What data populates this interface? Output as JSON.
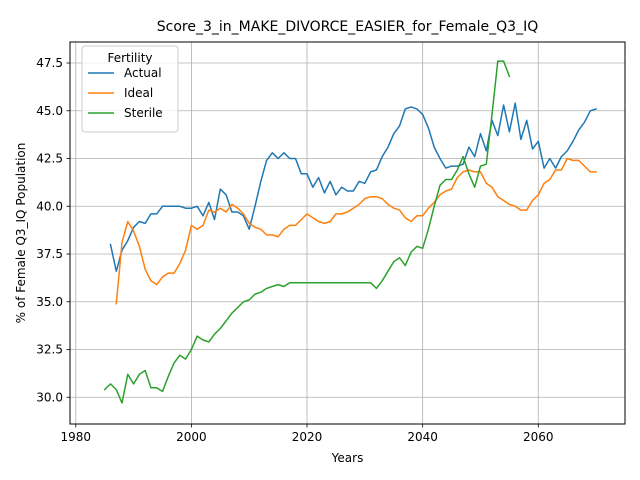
{
  "chart_data": {
    "type": "line",
    "title": "Score_3_in_MAKE_DIVORCE_EASIER_for_Female_Q3_IQ",
    "xlabel": "Years",
    "ylabel": "% of Female Q3_IQ Population",
    "xlim": [
      1979,
      2075
    ],
    "ylim": [
      28.6,
      48.6
    ],
    "xticks": [
      1980,
      2000,
      2020,
      2040,
      2060
    ],
    "yticks": [
      30.0,
      32.5,
      35.0,
      37.5,
      40.0,
      42.5,
      45.0,
      47.5
    ],
    "grid": true,
    "legend": {
      "title": "Fertility",
      "placement": "top-left"
    },
    "series": [
      {
        "name": "Actual",
        "color": "#1f77b4",
        "x": [
          1986,
          1987,
          1988,
          1989,
          1990,
          1991,
          1992,
          1993,
          1994,
          1995,
          1996,
          1997,
          1998,
          1999,
          2000,
          2001,
          2002,
          2003,
          2004,
          2005,
          2006,
          2007,
          2008,
          2009,
          2010,
          2011,
          2012,
          2013,
          2014,
          2015,
          2016,
          2017,
          2018,
          2019,
          2020,
          2021,
          2022,
          2023,
          2024,
          2025,
          2026,
          2027,
          2028,
          2029,
          2030,
          2031,
          2032,
          2033,
          2034,
          2035,
          2036,
          2037,
          2038,
          2039,
          2040,
          2041,
          2042,
          2043,
          2044,
          2045,
          2046,
          2047,
          2048,
          2049,
          2050,
          2051,
          2052,
          2053,
          2054,
          2055,
          2056,
          2057,
          2058,
          2059,
          2060,
          2061,
          2062,
          2063,
          2064,
          2065,
          2066,
          2067,
          2068,
          2069,
          2070
        ],
        "values": [
          38.0,
          36.6,
          37.7,
          38.2,
          38.9,
          39.2,
          39.1,
          39.6,
          39.6,
          40.0,
          40.0,
          40.0,
          40.0,
          39.9,
          39.9,
          40.0,
          39.5,
          40.2,
          39.3,
          40.9,
          40.6,
          39.7,
          39.7,
          39.5,
          38.8,
          40.0,
          41.3,
          42.4,
          42.8,
          42.5,
          42.8,
          42.5,
          42.5,
          41.7,
          41.7,
          41.0,
          41.5,
          40.7,
          41.3,
          40.6,
          41.0,
          40.8,
          40.8,
          41.3,
          41.2,
          41.8,
          41.9,
          42.6,
          43.1,
          43.8,
          44.2,
          45.1,
          45.2,
          45.1,
          44.8,
          44.1,
          43.1,
          42.5,
          42.0,
          42.1,
          42.1,
          42.2,
          43.1,
          42.6,
          43.8,
          42.9,
          44.5,
          43.7,
          45.3,
          43.9,
          45.4,
          43.5,
          44.5,
          43.0,
          43.4,
          42.0,
          42.5,
          42.0,
          42.6,
          42.9,
          43.4,
          44.0,
          44.4,
          45.0,
          45.1
        ]
      },
      {
        "name": "Ideal",
        "color": "#ff7f0e",
        "x": [
          1987,
          1988,
          1989,
          1990,
          1991,
          1992,
          1993,
          1994,
          1995,
          1996,
          1997,
          1998,
          1999,
          2000,
          2001,
          2002,
          2003,
          2004,
          2005,
          2006,
          2007,
          2008,
          2009,
          2010,
          2011,
          2012,
          2013,
          2014,
          2015,
          2016,
          2017,
          2018,
          2019,
          2020,
          2021,
          2022,
          2023,
          2024,
          2025,
          2026,
          2027,
          2028,
          2029,
          2030,
          2031,
          2032,
          2033,
          2034,
          2035,
          2036,
          2037,
          2038,
          2039,
          2040,
          2041,
          2042,
          2043,
          2044,
          2045,
          2046,
          2047,
          2048,
          2049,
          2050,
          2051,
          2052,
          2053,
          2054,
          2055,
          2056,
          2057,
          2058,
          2059,
          2060,
          2061,
          2062,
          2063,
          2064,
          2065,
          2066,
          2067,
          2068,
          2069,
          2070
        ],
        "values": [
          34.9,
          38.1,
          39.2,
          38.7,
          37.9,
          36.7,
          36.1,
          35.9,
          36.3,
          36.5,
          36.5,
          37.0,
          37.7,
          39.0,
          38.8,
          39.0,
          39.8,
          39.7,
          39.9,
          39.7,
          40.1,
          39.9,
          39.6,
          39.1,
          38.9,
          38.8,
          38.5,
          38.5,
          38.4,
          38.8,
          39.0,
          39.0,
          39.3,
          39.6,
          39.4,
          39.2,
          39.1,
          39.2,
          39.6,
          39.6,
          39.7,
          39.9,
          40.1,
          40.4,
          40.5,
          40.5,
          40.4,
          40.1,
          39.9,
          39.8,
          39.4,
          39.2,
          39.5,
          39.5,
          39.9,
          40.2,
          40.6,
          40.8,
          40.9,
          41.5,
          41.8,
          41.9,
          41.8,
          41.8,
          41.2,
          41.0,
          40.5,
          40.3,
          40.1,
          40.0,
          39.8,
          39.8,
          40.3,
          40.6,
          41.2,
          41.4,
          41.9,
          41.9,
          42.5,
          42.4,
          42.4,
          42.1,
          41.8,
          41.8
        ]
      },
      {
        "name": "Sterile",
        "color": "#2ca02c",
        "x": [
          1985,
          1986,
          1987,
          1988,
          1989,
          1990,
          1991,
          1992,
          1993,
          1994,
          1995,
          1996,
          1997,
          1998,
          1999,
          2000,
          2001,
          2002,
          2003,
          2004,
          2005,
          2006,
          2007,
          2008,
          2009,
          2010,
          2011,
          2012,
          2013,
          2014,
          2015,
          2016,
          2017,
          2018,
          2019,
          2020,
          2021,
          2022,
          2023,
          2024,
          2025,
          2026,
          2027,
          2028,
          2029,
          2030,
          2031,
          2032,
          2033,
          2034,
          2035,
          2036,
          2037,
          2038,
          2039,
          2040,
          2041,
          2042,
          2043,
          2044,
          2045,
          2046,
          2047,
          2048,
          2049,
          2050,
          2051,
          2052,
          2053,
          2054,
          2055
        ],
        "values": [
          30.4,
          30.7,
          30.4,
          29.7,
          31.2,
          30.7,
          31.2,
          31.4,
          30.5,
          30.5,
          30.3,
          31.1,
          31.8,
          32.2,
          32.0,
          32.5,
          33.2,
          33.0,
          32.9,
          33.3,
          33.6,
          34.0,
          34.4,
          34.7,
          35.0,
          35.1,
          35.4,
          35.5,
          35.7,
          35.8,
          35.9,
          35.8,
          36.0,
          36.0,
          36.0,
          36.0,
          36.0,
          36.0,
          36.0,
          36.0,
          36.0,
          36.0,
          36.0,
          36.0,
          36.0,
          36.0,
          36.0,
          35.7,
          36.1,
          36.6,
          37.1,
          37.3,
          36.9,
          37.6,
          37.9,
          37.8,
          38.8,
          40.0,
          41.1,
          41.4,
          41.4,
          41.9,
          42.6,
          41.7,
          41.0,
          42.1,
          42.2,
          44.8,
          47.6,
          47.6,
          46.8
        ]
      }
    ]
  }
}
